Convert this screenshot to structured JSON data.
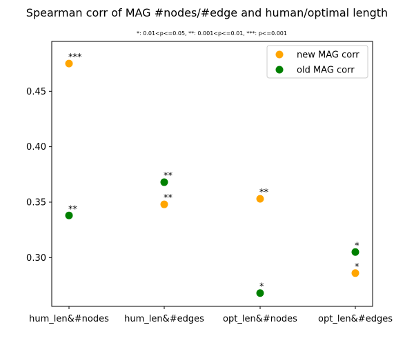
{
  "chart_data": {
    "type": "scatter",
    "title": "Spearman corr of MAG #nodes/#edge and human/optimal length",
    "subtitle": "*: 0.01<p<=0.05, **: 0.001<p<=0.01, ***: p<=0.001",
    "categories": [
      "hum_len&#nodes",
      "hum_len&#edges",
      "opt_len&#nodes",
      "opt_len&#edges"
    ],
    "ylim": [
      0.256,
      0.495
    ],
    "yticks": [
      "0.30",
      "0.35",
      "0.40",
      "0.45"
    ],
    "grid": false,
    "legend_position": "top-right",
    "series": [
      {
        "name": "new MAG corr",
        "color": "#FFA500",
        "values": [
          0.475,
          0.348,
          0.353,
          0.286
        ],
        "sig": [
          "***",
          "**",
          "**",
          "*"
        ]
      },
      {
        "name": "old MAG corr",
        "color": "#008000",
        "values": [
          0.338,
          0.368,
          0.268,
          0.305
        ],
        "sig": [
          "**",
          "**",
          "*",
          "*"
        ]
      }
    ]
  }
}
